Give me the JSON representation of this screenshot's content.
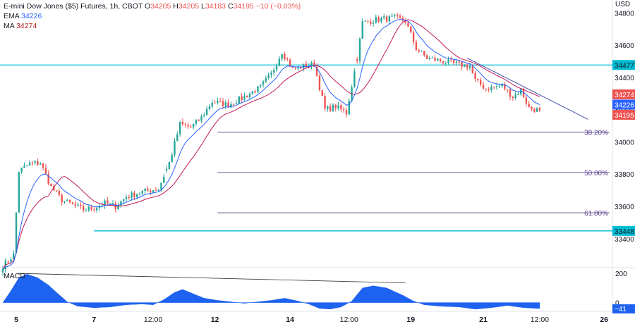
{
  "header": {
    "symbol": "E-mini Dow Jones ($5) Futures, 1h, CBOT",
    "o_label": "O",
    "o": "34205",
    "h_label": "H",
    "h": "34205",
    "l_label": "L",
    "l": "34183",
    "c_label": "C",
    "c": "34195",
    "change": "−10 (−0.03%)",
    "ema_label": "EMA",
    "ema_value": "34226",
    "ma_label": "MA",
    "ma_value": "34274"
  },
  "colors": {
    "up": "#26a69a",
    "down": "#ef5350",
    "ema": "#2962ff",
    "ma": "#c2185b",
    "level": "#00bcd4",
    "fib": "#5b5b8f",
    "macd": "#1e62f0"
  },
  "chart_data": {
    "type": "candlestick",
    "price_axis": {
      "unit": "USD",
      "ticks": [
        33400,
        33600,
        33800,
        34000,
        34200,
        34400,
        34600,
        34800
      ],
      "range": [
        33220,
        34880
      ]
    },
    "time_axis": {
      "ticks": [
        "5",
        "7",
        "12:00",
        "12",
        "14",
        "12:00",
        "19",
        "21",
        "12:00",
        "26"
      ],
      "tick_bar_index": [
        5,
        34,
        56,
        79,
        107,
        129,
        152,
        179,
        200,
        224
      ]
    },
    "price_path": [
      [
        0,
        33230
      ],
      [
        4,
        33300
      ],
      [
        6,
        33820
      ],
      [
        10,
        33865
      ],
      [
        14,
        33870
      ],
      [
        18,
        33720
      ],
      [
        22,
        33640
      ],
      [
        26,
        33610
      ],
      [
        30,
        33580
      ],
      [
        34,
        33590
      ],
      [
        38,
        33620
      ],
      [
        42,
        33600
      ],
      [
        46,
        33660
      ],
      [
        52,
        33690
      ],
      [
        58,
        33710
      ],
      [
        62,
        33870
      ],
      [
        66,
        34110
      ],
      [
        70,
        34090
      ],
      [
        74,
        34150
      ],
      [
        78,
        34250
      ],
      [
        84,
        34230
      ],
      [
        90,
        34280
      ],
      [
        96,
        34340
      ],
      [
        100,
        34420
      ],
      [
        104,
        34560
      ],
      [
        108,
        34450
      ],
      [
        112,
        34470
      ],
      [
        116,
        34480
      ],
      [
        120,
        34200
      ],
      [
        124,
        34220
      ],
      [
        128,
        34180
      ],
      [
        132,
        34520
      ],
      [
        134,
        34740
      ],
      [
        140,
        34760
      ],
      [
        146,
        34770
      ],
      [
        150,
        34750
      ],
      [
        154,
        34580
      ],
      [
        158,
        34520
      ],
      [
        164,
        34500
      ],
      [
        170,
        34480
      ],
      [
        174,
        34470
      ],
      [
        176,
        34380
      ],
      [
        180,
        34330
      ],
      [
        186,
        34350
      ],
      [
        190,
        34280
      ],
      [
        193,
        34320
      ],
      [
        196,
        34210
      ],
      [
        200,
        34195
      ]
    ],
    "price_gaps": [
      [
        60,
        61
      ],
      [
        131,
        132
      ]
    ],
    "fib_levels": [
      {
        "label": "38.20%",
        "price": 34060
      },
      {
        "label": "50.00%",
        "price": 33810
      },
      {
        "label": "61.80%",
        "price": 33560
      }
    ],
    "horizontal_levels": [
      {
        "label": "34477",
        "price": 34477
      },
      {
        "label": "33448",
        "price": 33448
      }
    ],
    "trendlines": [
      {
        "from": [
          173,
          34520
        ],
        "to": [
          218,
          34140
        ]
      }
    ],
    "price_labels": [
      {
        "label": "34274",
        "price": 34274,
        "color": "#ef5350"
      },
      {
        "label": "34226",
        "price": 34226,
        "color": "#2962ff"
      },
      {
        "label": "34195",
        "price": 34195,
        "color": "#ef5350"
      }
    ],
    "macd": {
      "name": "MACD",
      "last_value": "−41",
      "axis_ticks": [
        200,
        0
      ],
      "range": [
        -60,
        230
      ],
      "path": [
        [
          0,
          0
        ],
        [
          3,
          80
        ],
        [
          6,
          170
        ],
        [
          9,
          195
        ],
        [
          13,
          170
        ],
        [
          17,
          120
        ],
        [
          20,
          70
        ],
        [
          24,
          5
        ],
        [
          28,
          -25
        ],
        [
          34,
          -35
        ],
        [
          40,
          -30
        ],
        [
          46,
          -15
        ],
        [
          52,
          -10
        ],
        [
          56,
          -15
        ],
        [
          60,
          20
        ],
        [
          64,
          70
        ],
        [
          67,
          90
        ],
        [
          71,
          60
        ],
        [
          75,
          30
        ],
        [
          80,
          15
        ],
        [
          90,
          -5
        ],
        [
          100,
          15
        ],
        [
          105,
          30
        ],
        [
          110,
          10
        ],
        [
          114,
          -10
        ],
        [
          118,
          -40
        ],
        [
          122,
          -45
        ],
        [
          126,
          -30
        ],
        [
          130,
          10
        ],
        [
          134,
          100
        ],
        [
          138,
          115
        ],
        [
          143,
          100
        ],
        [
          149,
          50
        ],
        [
          153,
          10
        ],
        [
          157,
          -15
        ],
        [
          163,
          -25
        ],
        [
          170,
          -30
        ],
        [
          176,
          -45
        ],
        [
          182,
          -35
        ],
        [
          188,
          -20
        ],
        [
          194,
          -35
        ],
        [
          200,
          -41
        ]
      ],
      "divergence_line": {
        "from": [
          6,
          200
        ],
        "to": [
          150,
          135
        ]
      }
    }
  }
}
